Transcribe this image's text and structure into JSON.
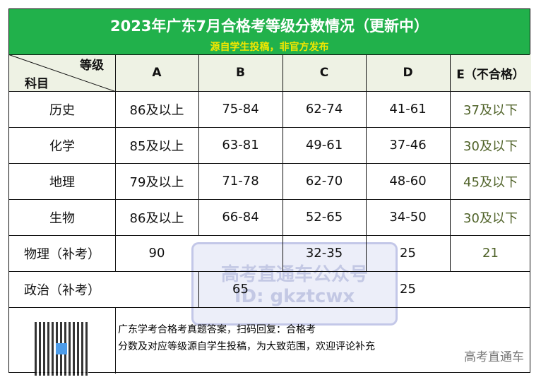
{
  "title": "2023年广东7月合格考等级分数情况（更新中）",
  "subtitle": "源自学生投稿，非官方发布",
  "header": {
    "grade_label": "等级",
    "subject_label": "科目",
    "grades": [
      "A",
      "B",
      "C",
      "D",
      "E（不合格）"
    ]
  },
  "rows": [
    {
      "subject": "历史",
      "A": "86及以上",
      "B": "75-84",
      "C": "62-74",
      "D": "41-61",
      "E": "37及以下"
    },
    {
      "subject": "化学",
      "A": "85及以上",
      "B": "63-81",
      "C": "49-61",
      "D": "37-46",
      "E": "30及以下"
    },
    {
      "subject": "地理",
      "A": "79及以上",
      "B": "71-78",
      "C": "62-70",
      "D": "48-60",
      "E": "45及以下"
    },
    {
      "subject": "生物",
      "A": "86及以上",
      "B": "66-84",
      "C": "52-65",
      "D": "34-50",
      "E": "30及以下"
    },
    {
      "subject": "物理（补考）",
      "A": "90",
      "B": "",
      "C": "32-35",
      "D": "25",
      "E": "21"
    },
    {
      "subject": "政治（补考）",
      "A": "",
      "B": "65",
      "C": "",
      "D": "25",
      "E": ""
    }
  ],
  "watermark": {
    "line1": "高考直通车公众号",
    "line2": "ID: gkztcwx"
  },
  "footer": {
    "line1": "广东学考合格考真题答案，扫码回复：合格考",
    "line2": "分数及对应等级源自学生投稿，为大致范围，欢迎评论补充",
    "brand": "高考直通车"
  },
  "colors": {
    "title_bg": "#21b14b",
    "subtitle": "#f2e700",
    "grade_e": "#4f6228"
  }
}
